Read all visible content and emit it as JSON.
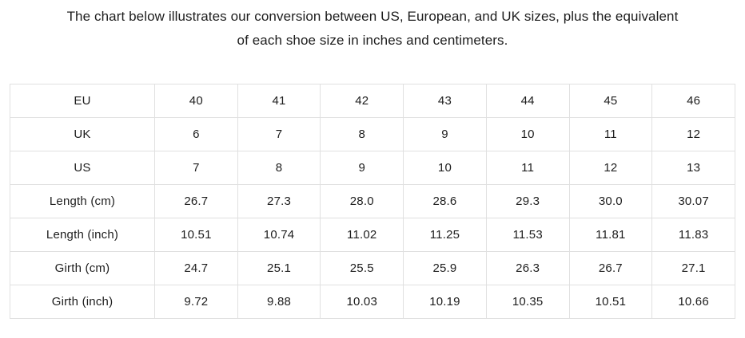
{
  "header": {
    "line1": "The chart below illustrates our conversion between US, European, and UK sizes, plus the equivalent",
    "line2": "of each shoe size in inches and centimeters."
  },
  "colors": {
    "background": "#ffffff",
    "text": "#1d1d1d",
    "table_border": "#e0e0e0"
  },
  "chart_data": {
    "type": "table",
    "grid": true,
    "rows": [
      {
        "label": "EU",
        "values": [
          "40",
          "41",
          "42",
          "43",
          "44",
          "45",
          "46"
        ]
      },
      {
        "label": "UK",
        "values": [
          "6",
          "7",
          "8",
          "9",
          "10",
          "11",
          "12"
        ]
      },
      {
        "label": "US",
        "values": [
          "7",
          "8",
          "9",
          "10",
          "11",
          "12",
          "13"
        ]
      },
      {
        "label": "Length (cm)",
        "values": [
          "26.7",
          "27.3",
          "28.0",
          "28.6",
          "29.3",
          "30.0",
          "30.07"
        ]
      },
      {
        "label": "Length (inch)",
        "values": [
          "10.51",
          "10.74",
          "11.02",
          "11.25",
          "11.53",
          "11.81",
          "11.83"
        ]
      },
      {
        "label": "Girth (cm)",
        "values": [
          "24.7",
          "25.1",
          "25.5",
          "25.9",
          "26.3",
          "26.7",
          "27.1"
        ]
      },
      {
        "label": "Girth (inch)",
        "values": [
          "9.72",
          "9.88",
          "10.03",
          "10.19",
          "10.35",
          "10.51",
          "10.66"
        ]
      }
    ]
  }
}
